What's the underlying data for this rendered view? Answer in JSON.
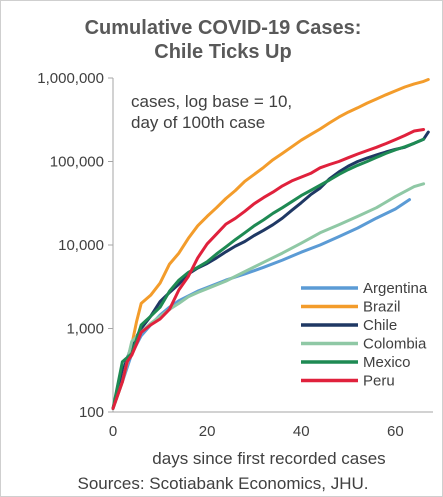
{
  "chart_data": {
    "type": "line",
    "title": [
      "Cumulative COVID-19 Cases:",
      "Chile Ticks Up"
    ],
    "annotation": [
      "cases, log base = 10,",
      "day of 100th case"
    ],
    "xlabel": "days since first recorded cases",
    "source": "Sources: Scotiabank Economics, JHU.",
    "xlim": [
      0,
      68
    ],
    "ylim": [
      100,
      1000000
    ],
    "yscale": "log",
    "x_ticks": [
      0,
      20,
      40,
      60
    ],
    "x_tick_labels": [
      "0",
      "20",
      "40",
      "60"
    ],
    "y_ticks": [
      100,
      1000,
      10000,
      100000,
      1000000
    ],
    "y_tick_labels": [
      "100",
      "1,000",
      "10,000",
      "100,000",
      "1,000,000"
    ],
    "legend_position": "bottom-right",
    "series": [
      {
        "name": "Argentina",
        "color": "#5b9bd5",
        "points": [
          [
            0,
            110
          ],
          [
            2,
            230
          ],
          [
            4,
            500
          ],
          [
            6,
            820
          ],
          [
            8,
            1100
          ],
          [
            10,
            1450
          ],
          [
            12,
            1800
          ],
          [
            14,
            2150
          ],
          [
            16,
            2450
          ],
          [
            18,
            2800
          ],
          [
            20,
            3100
          ],
          [
            24,
            3800
          ],
          [
            28,
            4500
          ],
          [
            32,
            5400
          ],
          [
            36,
            6600
          ],
          [
            40,
            8200
          ],
          [
            44,
            10000
          ],
          [
            48,
            12600
          ],
          [
            52,
            16000
          ],
          [
            56,
            21000
          ],
          [
            60,
            27000
          ],
          [
            63,
            35000
          ]
        ]
      },
      {
        "name": "Brazil",
        "color": "#f39c2b",
        "points": [
          [
            0,
            110
          ],
          [
            2,
            230
          ],
          [
            4,
            640
          ],
          [
            5,
            1200
          ],
          [
            6,
            2000
          ],
          [
            8,
            2500
          ],
          [
            10,
            3500
          ],
          [
            12,
            5900
          ],
          [
            14,
            8000
          ],
          [
            16,
            12000
          ],
          [
            18,
            17000
          ],
          [
            20,
            22000
          ],
          [
            22,
            28000
          ],
          [
            24,
            36000
          ],
          [
            26,
            45000
          ],
          [
            28,
            58000
          ],
          [
            30,
            70000
          ],
          [
            32,
            85000
          ],
          [
            34,
            105000
          ],
          [
            36,
            125000
          ],
          [
            38,
            150000
          ],
          [
            40,
            180000
          ],
          [
            42,
            210000
          ],
          [
            44,
            245000
          ],
          [
            46,
            290000
          ],
          [
            48,
            340000
          ],
          [
            50,
            390000
          ],
          [
            52,
            440000
          ],
          [
            54,
            500000
          ],
          [
            56,
            560000
          ],
          [
            58,
            630000
          ],
          [
            60,
            700000
          ],
          [
            62,
            780000
          ],
          [
            64,
            850000
          ],
          [
            66,
            910000
          ],
          [
            67,
            960000
          ]
        ]
      },
      {
        "name": "Chile",
        "color": "#1f3864",
        "points": [
          [
            0,
            110
          ],
          [
            2,
            300
          ],
          [
            4,
            630
          ],
          [
            6,
            1000
          ],
          [
            8,
            1400
          ],
          [
            10,
            2100
          ],
          [
            12,
            2700
          ],
          [
            14,
            3400
          ],
          [
            16,
            4500
          ],
          [
            18,
            5300
          ],
          [
            20,
            6000
          ],
          [
            22,
            7000
          ],
          [
            24,
            8300
          ],
          [
            26,
            9700
          ],
          [
            28,
            11000
          ],
          [
            30,
            13000
          ],
          [
            32,
            15000
          ],
          [
            34,
            17500
          ],
          [
            36,
            21000
          ],
          [
            38,
            26000
          ],
          [
            40,
            32000
          ],
          [
            42,
            40000
          ],
          [
            44,
            48000
          ],
          [
            46,
            62000
          ],
          [
            48,
            75000
          ],
          [
            50,
            88000
          ],
          [
            52,
            100000
          ],
          [
            54,
            110000
          ],
          [
            56,
            120000
          ],
          [
            58,
            130000
          ],
          [
            60,
            140000
          ],
          [
            62,
            148000
          ],
          [
            64,
            165000
          ],
          [
            66,
            185000
          ],
          [
            67,
            225000
          ]
        ]
      },
      {
        "name": "Colombia",
        "color": "#8fc8a5",
        "points": [
          [
            0,
            110
          ],
          [
            2,
            230
          ],
          [
            4,
            700
          ],
          [
            6,
            900
          ],
          [
            8,
            1150
          ],
          [
            10,
            1400
          ],
          [
            12,
            1700
          ],
          [
            14,
            2000
          ],
          [
            16,
            2400
          ],
          [
            18,
            2700
          ],
          [
            20,
            3000
          ],
          [
            24,
            3700
          ],
          [
            28,
            4800
          ],
          [
            32,
            6200
          ],
          [
            36,
            8000
          ],
          [
            40,
            10500
          ],
          [
            44,
            14000
          ],
          [
            48,
            17500
          ],
          [
            52,
            22000
          ],
          [
            56,
            28000
          ],
          [
            60,
            38000
          ],
          [
            64,
            50000
          ],
          [
            66,
            54000
          ]
        ]
      },
      {
        "name": "Mexico",
        "color": "#1e8a53",
        "points": [
          [
            0,
            110
          ],
          [
            2,
            400
          ],
          [
            4,
            500
          ],
          [
            6,
            1100
          ],
          [
            8,
            1400
          ],
          [
            10,
            1800
          ],
          [
            12,
            2800
          ],
          [
            14,
            3800
          ],
          [
            16,
            4700
          ],
          [
            18,
            5400
          ],
          [
            20,
            6300
          ],
          [
            22,
            7800
          ],
          [
            24,
            9500
          ],
          [
            26,
            11600
          ],
          [
            28,
            14000
          ],
          [
            30,
            17000
          ],
          [
            32,
            20000
          ],
          [
            34,
            24000
          ],
          [
            36,
            28000
          ],
          [
            38,
            33000
          ],
          [
            40,
            39000
          ],
          [
            42,
            45000
          ],
          [
            44,
            52000
          ],
          [
            46,
            60000
          ],
          [
            48,
            70000
          ],
          [
            50,
            80000
          ],
          [
            52,
            90000
          ],
          [
            54,
            100000
          ],
          [
            56,
            112000
          ],
          [
            58,
            125000
          ],
          [
            60,
            138000
          ],
          [
            62,
            150000
          ],
          [
            64,
            165000
          ],
          [
            66,
            185000
          ]
        ]
      },
      {
        "name": "Peru",
        "color": "#e0213c",
        "points": [
          [
            0,
            110
          ],
          [
            2,
            230
          ],
          [
            3,
            400
          ],
          [
            4,
            480
          ],
          [
            5,
            650
          ],
          [
            6,
            900
          ],
          [
            8,
            1100
          ],
          [
            10,
            1300
          ],
          [
            12,
            1700
          ],
          [
            14,
            2900
          ],
          [
            16,
            4200
          ],
          [
            18,
            7000
          ],
          [
            20,
            10300
          ],
          [
            22,
            13500
          ],
          [
            24,
            17800
          ],
          [
            26,
            20900
          ],
          [
            28,
            25300
          ],
          [
            30,
            31200
          ],
          [
            32,
            37000
          ],
          [
            34,
            43000
          ],
          [
            36,
            51000
          ],
          [
            38,
            58500
          ],
          [
            40,
            65000
          ],
          [
            42,
            72000
          ],
          [
            44,
            84000
          ],
          [
            46,
            92000
          ],
          [
            48,
            100000
          ],
          [
            50,
            111000
          ],
          [
            52,
            123000
          ],
          [
            54,
            135000
          ],
          [
            56,
            148000
          ],
          [
            58,
            164000
          ],
          [
            60,
            183000
          ],
          [
            62,
            205000
          ],
          [
            64,
            232000
          ],
          [
            66,
            242000
          ]
        ]
      }
    ]
  }
}
